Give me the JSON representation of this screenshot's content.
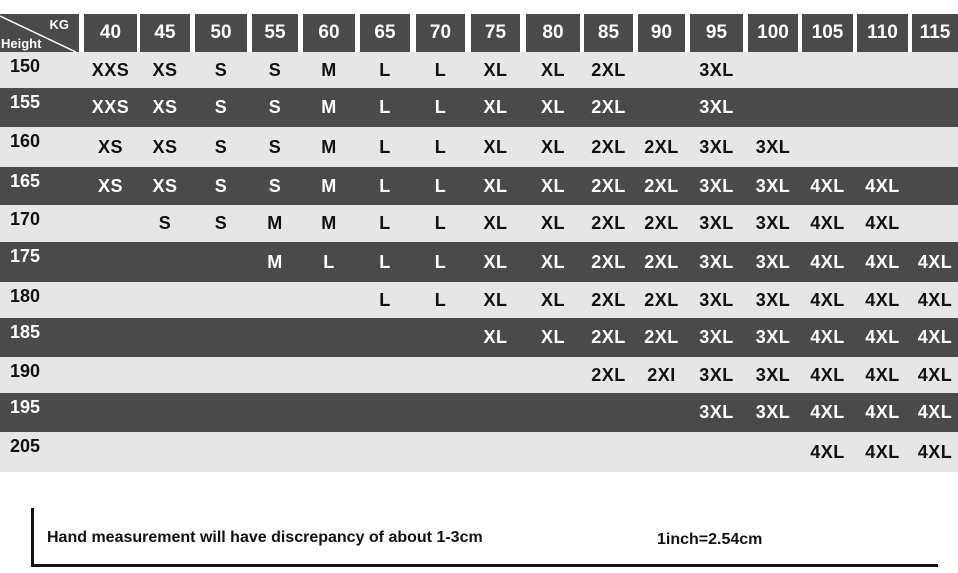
{
  "corner": {
    "kg_label": "KG",
    "height_label": "Height"
  },
  "weights": [
    "40",
    "45",
    "50",
    "55",
    "60",
    "65",
    "70",
    "75",
    "80",
    "85",
    "90",
    "95",
    "100",
    "105",
    "110",
    "115"
  ],
  "rows": [
    {
      "height": "150",
      "style": "light",
      "sizes": [
        "XXS",
        "XS",
        "S",
        "S",
        "M",
        "L",
        "L",
        "XL",
        "XL",
        "2XL",
        "",
        "3XL",
        "",
        "",
        "",
        ""
      ]
    },
    {
      "height": "155",
      "style": "dark",
      "sizes": [
        "XXS",
        "XS",
        "S",
        "S",
        "M",
        "L",
        "L",
        "XL",
        "XL",
        "2XL",
        "",
        "3XL",
        "",
        "",
        "",
        ""
      ]
    },
    {
      "height": "160",
      "style": "light",
      "sizes": [
        "XS",
        "XS",
        "S",
        "S",
        "M",
        "L",
        "L",
        "XL",
        "XL",
        "2XL",
        "2XL",
        "3XL",
        "3XL",
        "",
        "",
        ""
      ]
    },
    {
      "height": "165",
      "style": "dark",
      "sizes": [
        "XS",
        "XS",
        "S",
        "S",
        "M",
        "L",
        "L",
        "XL",
        "XL",
        "2XL",
        "2XL",
        "3XL",
        "3XL",
        "4XL",
        "4XL",
        ""
      ]
    },
    {
      "height": "170",
      "style": "light",
      "sizes": [
        "",
        "S",
        "S",
        "M",
        "M",
        "L",
        "L",
        "XL",
        "XL",
        "2XL",
        "2XL",
        "3XL",
        "3XL",
        "4XL",
        "4XL",
        ""
      ]
    },
    {
      "height": "175",
      "style": "dark",
      "sizes": [
        "",
        "",
        "",
        "M",
        "L",
        "L",
        "L",
        "XL",
        "XL",
        "2XL",
        "2XL",
        "3XL",
        "3XL",
        "4XL",
        "4XL",
        "4XL"
      ]
    },
    {
      "height": "180",
      "style": "light",
      "sizes": [
        "",
        "",
        "",
        "",
        "",
        "L",
        "L",
        "XL",
        "XL",
        "2XL",
        "2XL",
        "3XL",
        "3XL",
        "4XL",
        "4XL",
        "4XL"
      ]
    },
    {
      "height": "185",
      "style": "dark",
      "sizes": [
        "",
        "",
        "",
        "",
        "",
        "",
        "",
        "XL",
        "XL",
        "2XL",
        "2XL",
        "3XL",
        "3XL",
        "4XL",
        "4XL",
        "4XL"
      ]
    },
    {
      "height": "190",
      "style": "light",
      "sizes": [
        "",
        "",
        "",
        "",
        "",
        "",
        "",
        "",
        "",
        "2XL",
        "2XI",
        "3XL",
        "3XL",
        "4XL",
        "4XL",
        "4XL"
      ]
    },
    {
      "height": "195",
      "style": "dark",
      "sizes": [
        "",
        "",
        "",
        "",
        "",
        "",
        "",
        "",
        "",
        "",
        "",
        "3XL",
        "3XL",
        "4XL",
        "4XL",
        "4XL"
      ]
    },
    {
      "height": "205",
      "style": "light",
      "sizes": [
        "",
        "",
        "",
        "",
        "",
        "",
        "",
        "",
        "",
        "",
        "",
        "",
        "",
        "4XL",
        "4XL",
        "4XL"
      ]
    }
  ],
  "note": {
    "measurement": "Hand measurement will have discrepancy of about  1-3cm",
    "conversion": "1inch=2.54cm"
  },
  "colors": {
    "dark": "#4a4a4a",
    "light": "#e6e6e6"
  }
}
